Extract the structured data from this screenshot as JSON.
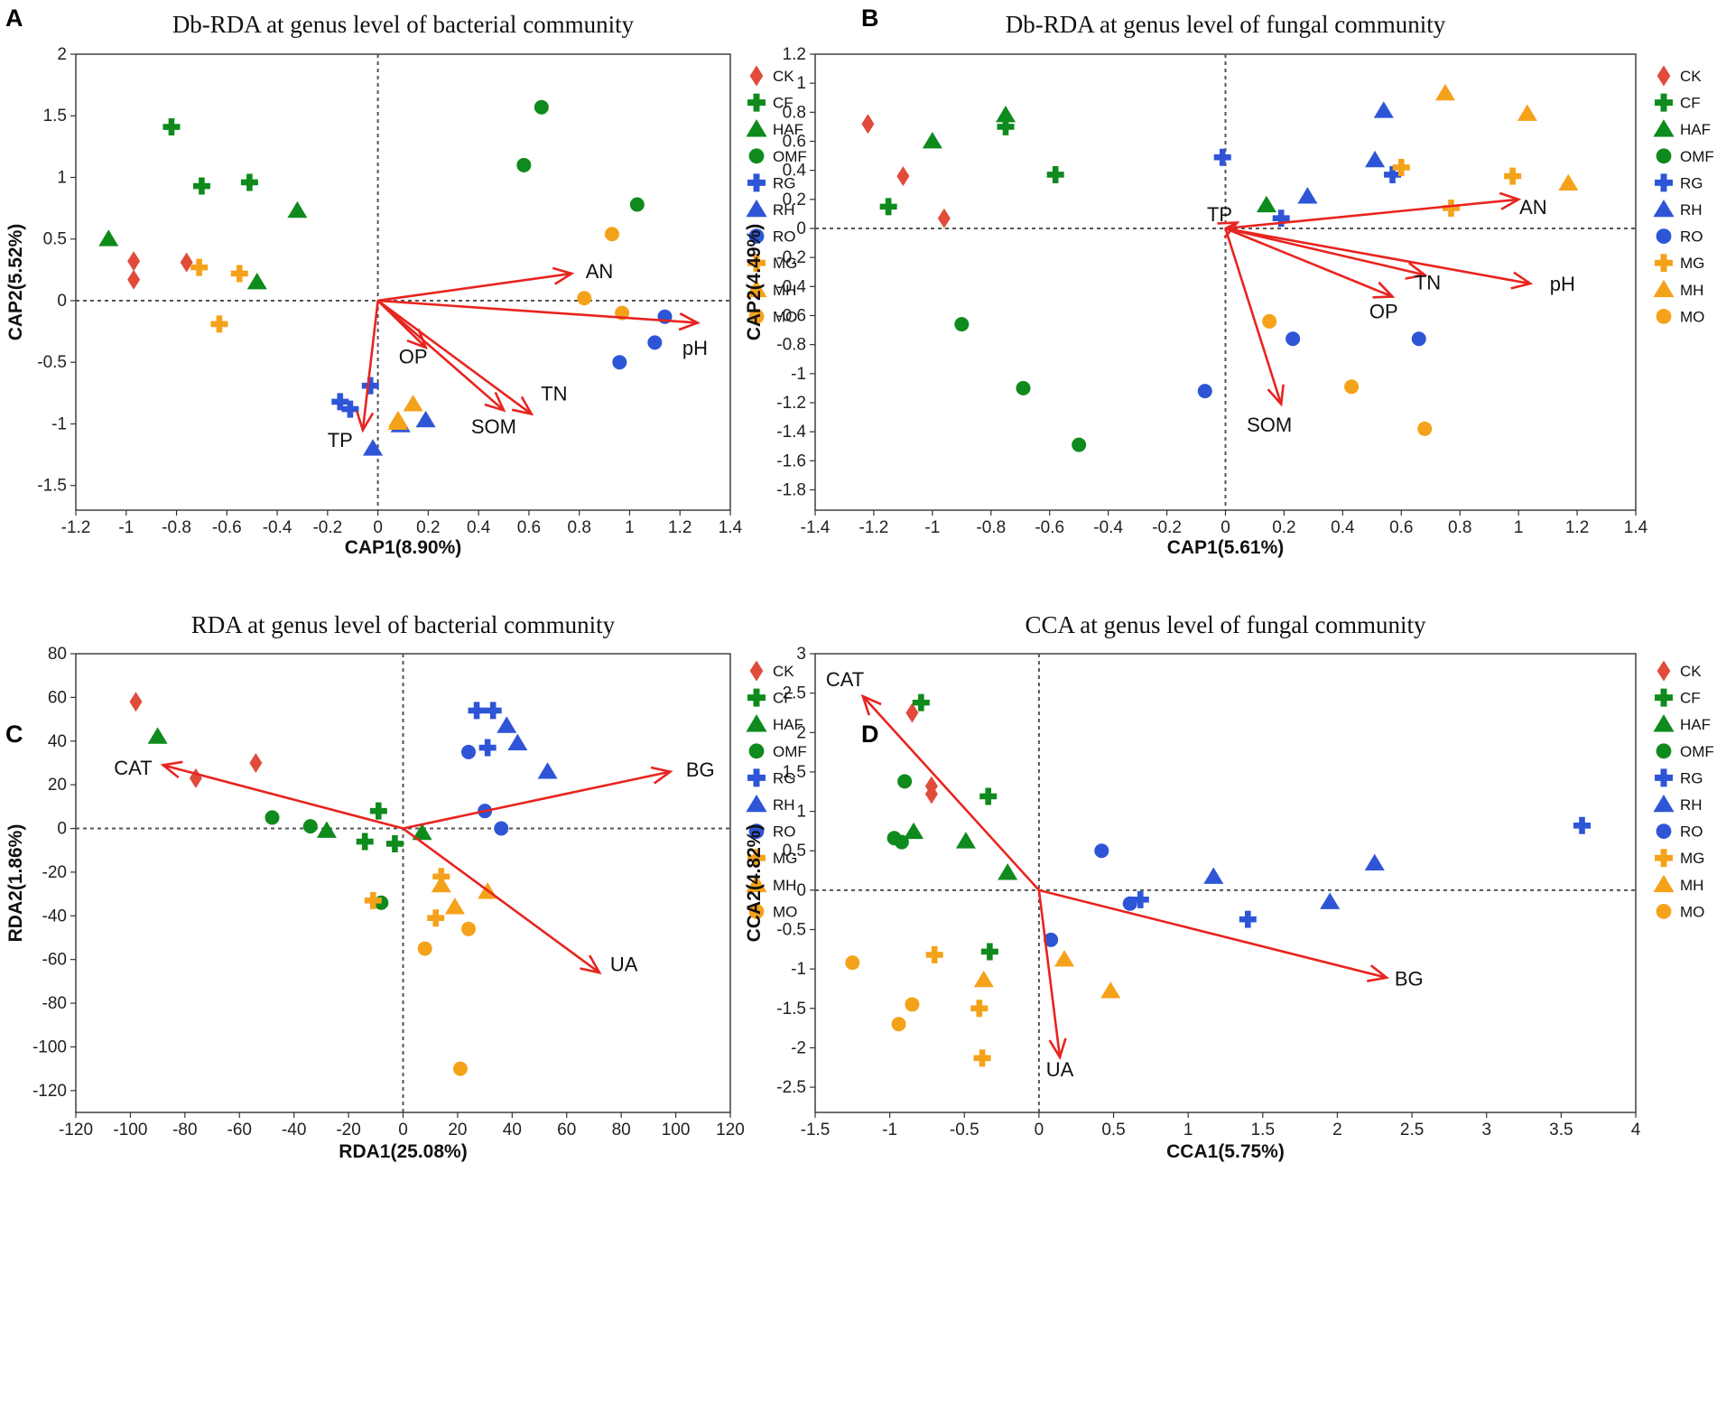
{
  "colors": {
    "CK": "#e04b3a",
    "green": "#0f8a1c",
    "blue": "#2e55d6",
    "orange": "#f5a21b",
    "arrow": "#e8241f"
  },
  "legend": [
    {
      "label": "CK",
      "shape": "diamond",
      "color": "#e04b3a"
    },
    {
      "label": "CF",
      "shape": "plus",
      "color": "#0f8a1c"
    },
    {
      "label": "HAF",
      "shape": "triangle",
      "color": "#0f8a1c"
    },
    {
      "label": "OMF",
      "shape": "circle",
      "color": "#0f8a1c"
    },
    {
      "label": "RG",
      "shape": "plus",
      "color": "#2e55d6"
    },
    {
      "label": "RH",
      "shape": "triangle",
      "color": "#2e55d6"
    },
    {
      "label": "RO",
      "shape": "circle",
      "color": "#2e55d6"
    },
    {
      "label": "MG",
      "shape": "plus",
      "color": "#f5a21b"
    },
    {
      "label": "MH",
      "shape": "triangle",
      "color": "#f5a21b"
    },
    {
      "label": "MO",
      "shape": "circle",
      "color": "#f5a21b"
    }
  ],
  "chart_data": [
    {
      "type": "scatter",
      "panel": "A",
      "title": "Db-RDA at genus level of bacterial community",
      "xlabel": "CAP1(8.90%)",
      "ylabel": "CAP2(5.52%)",
      "xlim": [
        -1.2,
        1.4
      ],
      "ylim": [
        -1.7,
        2.0
      ],
      "xticks": [
        "-1.2",
        "-1",
        "-0.8",
        "-0.6",
        "-0.4",
        "-0.2",
        "0",
        "0.2",
        "0.4",
        "0.6",
        "0.8",
        "1",
        "1.2",
        "1.4"
      ],
      "yticks": [
        "-1.5",
        "-1",
        "-0.5",
        "0",
        "0.5",
        "1",
        "1.5",
        "2"
      ],
      "points": [
        {
          "group": "CK",
          "x": -0.97,
          "y": 0.32
        },
        {
          "group": "CK",
          "x": -0.97,
          "y": 0.17
        },
        {
          "group": "CK",
          "x": -0.76,
          "y": 0.31
        },
        {
          "group": "CF",
          "x": -0.82,
          "y": 1.41
        },
        {
          "group": "CF",
          "x": -0.7,
          "y": 0.93
        },
        {
          "group": "CF",
          "x": -0.51,
          "y": 0.96
        },
        {
          "group": "HAF",
          "x": -1.07,
          "y": 0.5
        },
        {
          "group": "HAF",
          "x": -0.32,
          "y": 0.73
        },
        {
          "group": "HAF",
          "x": -0.48,
          "y": 0.15
        },
        {
          "group": "OMF",
          "x": 0.65,
          "y": 1.57
        },
        {
          "group": "OMF",
          "x": 0.58,
          "y": 1.1
        },
        {
          "group": "OMF",
          "x": 1.03,
          "y": 0.78
        },
        {
          "group": "RG",
          "x": -0.03,
          "y": -0.69
        },
        {
          "group": "RG",
          "x": -0.15,
          "y": -0.82
        },
        {
          "group": "RG",
          "x": -0.11,
          "y": -0.88
        },
        {
          "group": "RH",
          "x": -0.02,
          "y": -1.2
        },
        {
          "group": "RH",
          "x": 0.09,
          "y": -1.01
        },
        {
          "group": "RH",
          "x": 0.19,
          "y": -0.97
        },
        {
          "group": "RO",
          "x": 1.14,
          "y": -0.13
        },
        {
          "group": "RO",
          "x": 1.1,
          "y": -0.34
        },
        {
          "group": "RO",
          "x": 0.96,
          "y": -0.5
        },
        {
          "group": "MG",
          "x": -0.71,
          "y": 0.27
        },
        {
          "group": "MG",
          "x": -0.55,
          "y": 0.22
        },
        {
          "group": "MG",
          "x": -0.63,
          "y": -0.19
        },
        {
          "group": "MH",
          "x": 0.14,
          "y": -0.84
        },
        {
          "group": "MH",
          "x": 0.08,
          "y": -0.97
        },
        {
          "group": "MH",
          "x": 0.08,
          "y": -0.99
        },
        {
          "group": "MO",
          "x": 0.93,
          "y": 0.54
        },
        {
          "group": "MO",
          "x": 0.82,
          "y": 0.02
        },
        {
          "group": "MO",
          "x": 0.97,
          "y": -0.1
        }
      ],
      "arrows": [
        {
          "label": "AN",
          "x": 0.77,
          "y": 0.22,
          "lx": 0.88,
          "ly": 0.24
        },
        {
          "label": "pH",
          "x": 1.27,
          "y": -0.18,
          "lx": 1.26,
          "ly": -0.38
        },
        {
          "label": "OP",
          "x": 0.19,
          "y": -0.38,
          "lx": 0.14,
          "ly": -0.45
        },
        {
          "label": "TN",
          "x": 0.61,
          "y": -0.92,
          "lx": 0.7,
          "ly": -0.75
        },
        {
          "label": "SOM",
          "x": 0.5,
          "y": -0.89,
          "lx": 0.46,
          "ly": -1.02
        },
        {
          "label": "TP",
          "x": -0.06,
          "y": -1.05,
          "lx": -0.15,
          "ly": -1.13
        }
      ]
    },
    {
      "type": "scatter",
      "panel": "B",
      "title": "Db-RDA at genus level of fungal community",
      "xlabel": "CAP1(5.61%)",
      "ylabel": "CAP2(4.49%)",
      "xlim": [
        -1.4,
        1.4
      ],
      "ylim": [
        -1.94,
        1.2
      ],
      "xticks": [
        "-1.4",
        "-1.2",
        "-1",
        "-0.8",
        "-0.6",
        "-0.4",
        "-0.2",
        "0",
        "0.2",
        "0.4",
        "0.6",
        "0.8",
        "1",
        "1.2",
        "1.4"
      ],
      "yticks": [
        "-1.8",
        "-1.6",
        "-1.4",
        "-1.2",
        "-1",
        "-0.8",
        "-0.6",
        "-0.4",
        "-0.2",
        "0",
        "0.2",
        "0.4",
        "0.6",
        "0.8",
        "1",
        "1.2"
      ],
      "points": [
        {
          "group": "CK",
          "x": -1.22,
          "y": 0.72
        },
        {
          "group": "CK",
          "x": -1.1,
          "y": 0.36
        },
        {
          "group": "CK",
          "x": -0.96,
          "y": 0.07
        },
        {
          "group": "CF",
          "x": -0.75,
          "y": 0.7
        },
        {
          "group": "CF",
          "x": -0.58,
          "y": 0.37
        },
        {
          "group": "CF",
          "x": -1.15,
          "y": 0.15
        },
        {
          "group": "HAF",
          "x": -0.75,
          "y": 0.78
        },
        {
          "group": "HAF",
          "x": -1.0,
          "y": 0.6
        },
        {
          "group": "HAF",
          "x": 0.14,
          "y": 0.16
        },
        {
          "group": "OMF",
          "x": -0.9,
          "y": -0.66
        },
        {
          "group": "OMF",
          "x": -0.69,
          "y": -1.1
        },
        {
          "group": "OMF",
          "x": -0.5,
          "y": -1.49
        },
        {
          "group": "RG",
          "x": -0.01,
          "y": 0.49
        },
        {
          "group": "RG",
          "x": 0.57,
          "y": 0.37
        },
        {
          "group": "RG",
          "x": 0.19,
          "y": 0.07
        },
        {
          "group": "RH",
          "x": 0.54,
          "y": 0.81
        },
        {
          "group": "RH",
          "x": 0.51,
          "y": 0.47
        },
        {
          "group": "RH",
          "x": 0.28,
          "y": 0.22
        },
        {
          "group": "RO",
          "x": 0.23,
          "y": -0.76
        },
        {
          "group": "RO",
          "x": 0.66,
          "y": -0.76
        },
        {
          "group": "RO",
          "x": -0.07,
          "y": -1.12
        },
        {
          "group": "MG",
          "x": 0.6,
          "y": 0.42
        },
        {
          "group": "MG",
          "x": 0.98,
          "y": 0.36
        },
        {
          "group": "MG",
          "x": 0.77,
          "y": 0.14
        },
        {
          "group": "MH",
          "x": 0.75,
          "y": 0.93
        },
        {
          "group": "MH",
          "x": 1.03,
          "y": 0.79
        },
        {
          "group": "MH",
          "x": 1.17,
          "y": 0.31
        },
        {
          "group": "MO",
          "x": 0.15,
          "y": -0.64
        },
        {
          "group": "MO",
          "x": 0.43,
          "y": -1.09
        },
        {
          "group": "MO",
          "x": 0.68,
          "y": -1.38
        }
      ],
      "arrows": [
        {
          "label": "AN",
          "x": 1.0,
          "y": 0.2,
          "lx": 1.05,
          "ly": 0.15
        },
        {
          "label": "pH",
          "x": 1.04,
          "y": -0.38,
          "lx": 1.15,
          "ly": -0.38
        },
        {
          "label": "TN",
          "x": 0.68,
          "y": -0.32,
          "lx": 0.69,
          "ly": -0.37
        },
        {
          "label": "OP",
          "x": 0.57,
          "y": -0.47,
          "lx": 0.54,
          "ly": -0.57
        },
        {
          "label": "SOM",
          "x": 0.19,
          "y": -1.21,
          "lx": 0.15,
          "ly": -1.35
        },
        {
          "label": "TP",
          "x": 0.04,
          "y": 0.04,
          "lx": -0.02,
          "ly": 0.1
        }
      ]
    },
    {
      "type": "scatter",
      "panel": "C",
      "title": "RDA at genus level of bacterial community",
      "xlabel": "RDA1(25.08%)",
      "ylabel": "RDA2(1.86%)",
      "xlim": [
        -120,
        120
      ],
      "ylim": [
        -130,
        80
      ],
      "xticks": [
        "-120",
        "-100",
        "-80",
        "-60",
        "-40",
        "-20",
        "0",
        "20",
        "40",
        "60",
        "80",
        "100",
        "120"
      ],
      "yticks": [
        "-120",
        "-100",
        "-80",
        "-60",
        "-40",
        "-20",
        "0",
        "20",
        "40",
        "60",
        "80"
      ],
      "points": [
        {
          "group": "CK",
          "x": -98,
          "y": 58
        },
        {
          "group": "CK",
          "x": -54,
          "y": 30
        },
        {
          "group": "CK",
          "x": -76,
          "y": 23
        },
        {
          "group": "CF",
          "x": -9,
          "y": 8
        },
        {
          "group": "CF",
          "x": -14,
          "y": -6
        },
        {
          "group": "CF",
          "x": -3,
          "y": -7
        },
        {
          "group": "HAF",
          "x": -90,
          "y": 42
        },
        {
          "group": "HAF",
          "x": -28,
          "y": -1
        },
        {
          "group": "HAF",
          "x": 7,
          "y": -2
        },
        {
          "group": "OMF",
          "x": -48,
          "y": 5
        },
        {
          "group": "OMF",
          "x": -34,
          "y": 1
        },
        {
          "group": "OMF",
          "x": -8,
          "y": -34
        },
        {
          "group": "RG",
          "x": 27,
          "y": 54
        },
        {
          "group": "RG",
          "x": 33,
          "y": 54
        },
        {
          "group": "RG",
          "x": 31,
          "y": 37
        },
        {
          "group": "RH",
          "x": 38,
          "y": 47
        },
        {
          "group": "RH",
          "x": 42,
          "y": 39
        },
        {
          "group": "RH",
          "x": 53,
          "y": 26
        },
        {
          "group": "RO",
          "x": 24,
          "y": 35
        },
        {
          "group": "RO",
          "x": 30,
          "y": 8
        },
        {
          "group": "RO",
          "x": 36,
          "y": 0
        },
        {
          "group": "MG",
          "x": 14,
          "y": -22
        },
        {
          "group": "MG",
          "x": -11,
          "y": -33
        },
        {
          "group": "MG",
          "x": 12,
          "y": -41
        },
        {
          "group": "MH",
          "x": 14,
          "y": -26
        },
        {
          "group": "MH",
          "x": 19,
          "y": -36
        },
        {
          "group": "MH",
          "x": 31,
          "y": -29
        },
        {
          "group": "MO",
          "x": 24,
          "y": -46
        },
        {
          "group": "MO",
          "x": 8,
          "y": -55
        },
        {
          "group": "MO",
          "x": 21,
          "y": -110
        }
      ],
      "arrows": [
        {
          "label": "BG",
          "x": 98,
          "y": 26,
          "lx": 109,
          "ly": 27
        },
        {
          "label": "CAT",
          "x": -88,
          "y": 29,
          "lx": -99,
          "ly": 28
        },
        {
          "label": "UA",
          "x": 72,
          "y": -66,
          "lx": 81,
          "ly": -62
        }
      ]
    },
    {
      "type": "scatter",
      "panel": "D",
      "title": "CCA at genus level of fungal community",
      "xlabel": "CCA1(5.75%)",
      "ylabel": "CCA2(4.82%)",
      "xlim": [
        -1.5,
        4.0
      ],
      "ylim": [
        -2.82,
        3.0
      ],
      "xticks": [
        "-1.5",
        "-1",
        "-0.5",
        "0",
        "0.5",
        "1",
        "1.5",
        "2",
        "2.5",
        "3",
        "3.5",
        "4"
      ],
      "yticks": [
        "-2.5",
        "-2",
        "-1.5",
        "-1",
        "-0.5",
        "0",
        "0.5",
        "1",
        "1.5",
        "2",
        "2.5",
        "3"
      ],
      "points": [
        {
          "group": "CK",
          "x": -0.85,
          "y": 2.25
        },
        {
          "group": "CK",
          "x": -0.72,
          "y": 1.32
        },
        {
          "group": "CK",
          "x": -0.72,
          "y": 1.22
        },
        {
          "group": "CF",
          "x": -0.79,
          "y": 2.38
        },
        {
          "group": "CF",
          "x": -0.34,
          "y": 1.19
        },
        {
          "group": "CF",
          "x": -0.33,
          "y": -0.78
        },
        {
          "group": "HAF",
          "x": -0.84,
          "y": 0.74
        },
        {
          "group": "HAF",
          "x": -0.49,
          "y": 0.62
        },
        {
          "group": "HAF",
          "x": -0.21,
          "y": 0.22
        },
        {
          "group": "OMF",
          "x": -0.9,
          "y": 1.38
        },
        {
          "group": "OMF",
          "x": -0.97,
          "y": 0.66
        },
        {
          "group": "OMF",
          "x": -0.92,
          "y": 0.61
        },
        {
          "group": "RG",
          "x": 3.64,
          "y": 0.82
        },
        {
          "group": "RG",
          "x": 0.68,
          "y": -0.12
        },
        {
          "group": "RG",
          "x": 1.4,
          "y": -0.37
        },
        {
          "group": "RH",
          "x": 1.17,
          "y": 0.17
        },
        {
          "group": "RH",
          "x": 2.25,
          "y": 0.34
        },
        {
          "group": "RH",
          "x": 1.95,
          "y": -0.15
        },
        {
          "group": "RO",
          "x": 0.42,
          "y": 0.5
        },
        {
          "group": "RO",
          "x": 0.61,
          "y": -0.17
        },
        {
          "group": "RO",
          "x": 0.08,
          "y": -0.63
        },
        {
          "group": "MG",
          "x": -0.7,
          "y": -0.82
        },
        {
          "group": "MG",
          "x": -0.4,
          "y": -1.5
        },
        {
          "group": "MG",
          "x": -0.38,
          "y": -2.13
        },
        {
          "group": "MH",
          "x": 0.17,
          "y": -0.88
        },
        {
          "group": "MH",
          "x": -0.37,
          "y": -1.14
        },
        {
          "group": "MH",
          "x": 0.48,
          "y": -1.28
        },
        {
          "group": "MO",
          "x": -1.25,
          "y": -0.92
        },
        {
          "group": "MO",
          "x": -0.85,
          "y": -1.45
        },
        {
          "group": "MO",
          "x": -0.94,
          "y": -1.7
        }
      ],
      "arrows": [
        {
          "label": "CAT",
          "x": -1.18,
          "y": 2.46,
          "lx": -1.3,
          "ly": 2.68
        },
        {
          "label": "BG",
          "x": 2.33,
          "y": -1.11,
          "lx": 2.48,
          "ly": -1.12
        },
        {
          "label": "UA",
          "x": 0.14,
          "y": -2.12,
          "lx": 0.14,
          "ly": -2.27
        }
      ]
    }
  ]
}
